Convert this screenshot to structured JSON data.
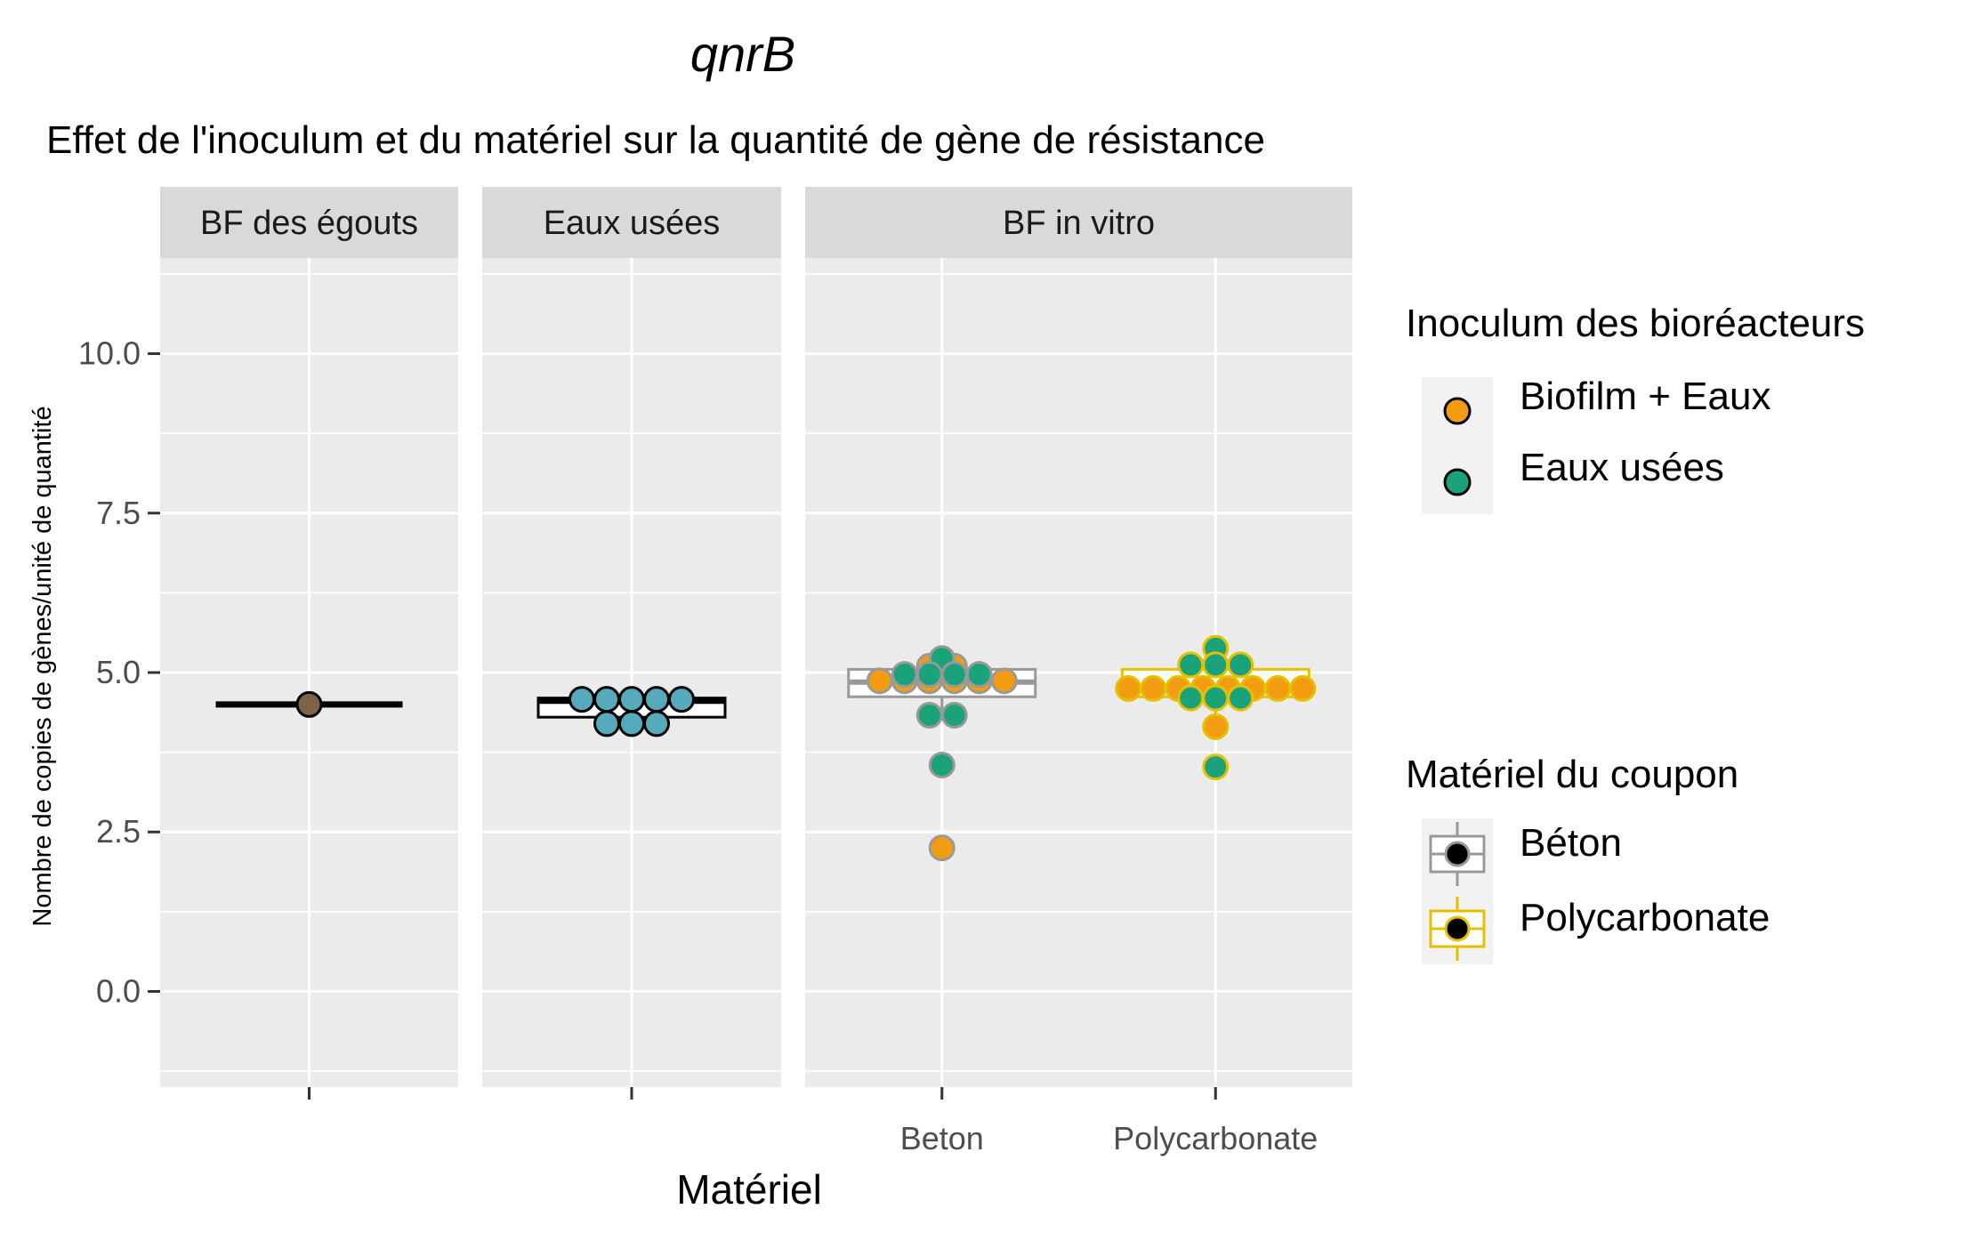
{
  "chart_data": {
    "type": "boxplot",
    "title": "qnrB",
    "subtitle": "Effet de l'inoculum et du matériel sur la quantité de gène de résistance",
    "xlabel": "Matériel",
    "ylabel": "Nombre de copies de gènes/unité de quantité",
    "ylim": [
      -1.5,
      11.5
    ],
    "yticks": [
      "0.0",
      "2.5",
      "5.0",
      "7.5",
      "10.0"
    ],
    "grid": true,
    "facets": [
      {
        "label": "BF des égouts",
        "categories": [
          ""
        ],
        "boxes": [
          {
            "category": "",
            "q1": 4.5,
            "median": 4.5,
            "q3": 4.5,
            "whisker_low": 4.5,
            "whisker_high": 4.5,
            "color": "#000000"
          }
        ],
        "points": [
          {
            "category": "",
            "value": 4.5,
            "fill": "#7f6346"
          }
        ]
      },
      {
        "label": "Eaux usées",
        "categories": [
          ""
        ],
        "boxes": [
          {
            "category": "",
            "q1": 4.3,
            "median": 4.55,
            "q3": 4.6,
            "whisker_low": 4.2,
            "whisker_high": 4.6,
            "color": "#000000"
          }
        ],
        "points": [
          {
            "category": "",
            "value": 4.58,
            "fill": "#55aabb"
          },
          {
            "category": "",
            "value": 4.58,
            "fill": "#55aabb"
          },
          {
            "category": "",
            "value": 4.58,
            "fill": "#55aabb"
          },
          {
            "category": "",
            "value": 4.58,
            "fill": "#55aabb"
          },
          {
            "category": "",
            "value": 4.58,
            "fill": "#55aabb"
          },
          {
            "category": "",
            "value": 4.2,
            "fill": "#55aabb"
          },
          {
            "category": "",
            "value": 4.2,
            "fill": "#55aabb"
          },
          {
            "category": "",
            "value": 4.2,
            "fill": "#55aabb"
          }
        ]
      },
      {
        "label": "BF in vitro",
        "categories": [
          "Beton",
          "Polycarbonate"
        ],
        "boxes": [
          {
            "category": "Beton",
            "q1": 4.62,
            "median": 4.85,
            "q3": 5.05,
            "whisker_low": 4.3,
            "whisker_high": 5.2,
            "color": "#999999"
          },
          {
            "category": "Polycarbonate",
            "q1": 4.62,
            "median": 4.75,
            "q3": 5.05,
            "whisker_low": 4.15,
            "whisker_high": 5.38,
            "color": "#e6c000"
          }
        ],
        "points": [
          {
            "category": "Beton",
            "value": 5.2,
            "fill": "#f39c12"
          },
          {
            "category": "Beton",
            "value": 5.1,
            "fill": "#f39c12"
          },
          {
            "category": "Beton",
            "value": 5.1,
            "fill": "#f39c12"
          },
          {
            "category": "Beton",
            "value": 4.87,
            "fill": "#f39c12"
          },
          {
            "category": "Beton",
            "value": 4.87,
            "fill": "#f39c12"
          },
          {
            "category": "Beton",
            "value": 4.87,
            "fill": "#f39c12"
          },
          {
            "category": "Beton",
            "value": 4.87,
            "fill": "#f39c12"
          },
          {
            "category": "Beton",
            "value": 4.87,
            "fill": "#f39c12"
          },
          {
            "category": "Beton",
            "value": 4.87,
            "fill": "#f39c12"
          },
          {
            "category": "Beton",
            "value": 2.25,
            "fill": "#f39c12"
          },
          {
            "category": "Beton",
            "value": 5.22,
            "fill": "#1aa37a"
          },
          {
            "category": "Beton",
            "value": 4.97,
            "fill": "#1aa37a"
          },
          {
            "category": "Beton",
            "value": 4.97,
            "fill": "#1aa37a"
          },
          {
            "category": "Beton",
            "value": 4.97,
            "fill": "#1aa37a"
          },
          {
            "category": "Beton",
            "value": 4.97,
            "fill": "#1aa37a"
          },
          {
            "category": "Beton",
            "value": 4.33,
            "fill": "#1aa37a"
          },
          {
            "category": "Beton",
            "value": 4.33,
            "fill": "#1aa37a"
          },
          {
            "category": "Beton",
            "value": 3.55,
            "fill": "#1aa37a"
          },
          {
            "category": "Polycarbonate",
            "value": 4.75,
            "fill": "#f39c12"
          },
          {
            "category": "Polycarbonate",
            "value": 4.75,
            "fill": "#f39c12"
          },
          {
            "category": "Polycarbonate",
            "value": 4.75,
            "fill": "#f39c12"
          },
          {
            "category": "Polycarbonate",
            "value": 4.75,
            "fill": "#f39c12"
          },
          {
            "category": "Polycarbonate",
            "value": 4.75,
            "fill": "#f39c12"
          },
          {
            "category": "Polycarbonate",
            "value": 4.75,
            "fill": "#f39c12"
          },
          {
            "category": "Polycarbonate",
            "value": 4.75,
            "fill": "#f39c12"
          },
          {
            "category": "Polycarbonate",
            "value": 4.75,
            "fill": "#f39c12"
          },
          {
            "category": "Polycarbonate",
            "value": 4.15,
            "fill": "#f39c12"
          },
          {
            "category": "Polycarbonate",
            "value": 5.38,
            "fill": "#1aa37a"
          },
          {
            "category": "Polycarbonate",
            "value": 5.12,
            "fill": "#1aa37a"
          },
          {
            "category": "Polycarbonate",
            "value": 5.12,
            "fill": "#1aa37a"
          },
          {
            "category": "Polycarbonate",
            "value": 5.12,
            "fill": "#1aa37a"
          },
          {
            "category": "Polycarbonate",
            "value": 4.6,
            "fill": "#1aa37a"
          },
          {
            "category": "Polycarbonate",
            "value": 4.6,
            "fill": "#1aa37a"
          },
          {
            "category": "Polycarbonate",
            "value": 4.6,
            "fill": "#1aa37a"
          },
          {
            "category": "Polycarbonate",
            "value": 3.52,
            "fill": "#1aa37a"
          }
        ]
      }
    ],
    "legends": [
      {
        "title": "Inoculum des bioréacteurs",
        "type": "fill",
        "entries": [
          {
            "label": "Biofilm + Eaux",
            "color": "#f39c12"
          },
          {
            "label": "Eaux usées",
            "color": "#1aa37a"
          }
        ]
      },
      {
        "title": "Matériel du coupon",
        "type": "colour",
        "entries": [
          {
            "label": "Béton",
            "color": "#999999"
          },
          {
            "label": "Polycarbonate",
            "color": "#e6c000"
          }
        ]
      }
    ],
    "legend_position": "right"
  }
}
